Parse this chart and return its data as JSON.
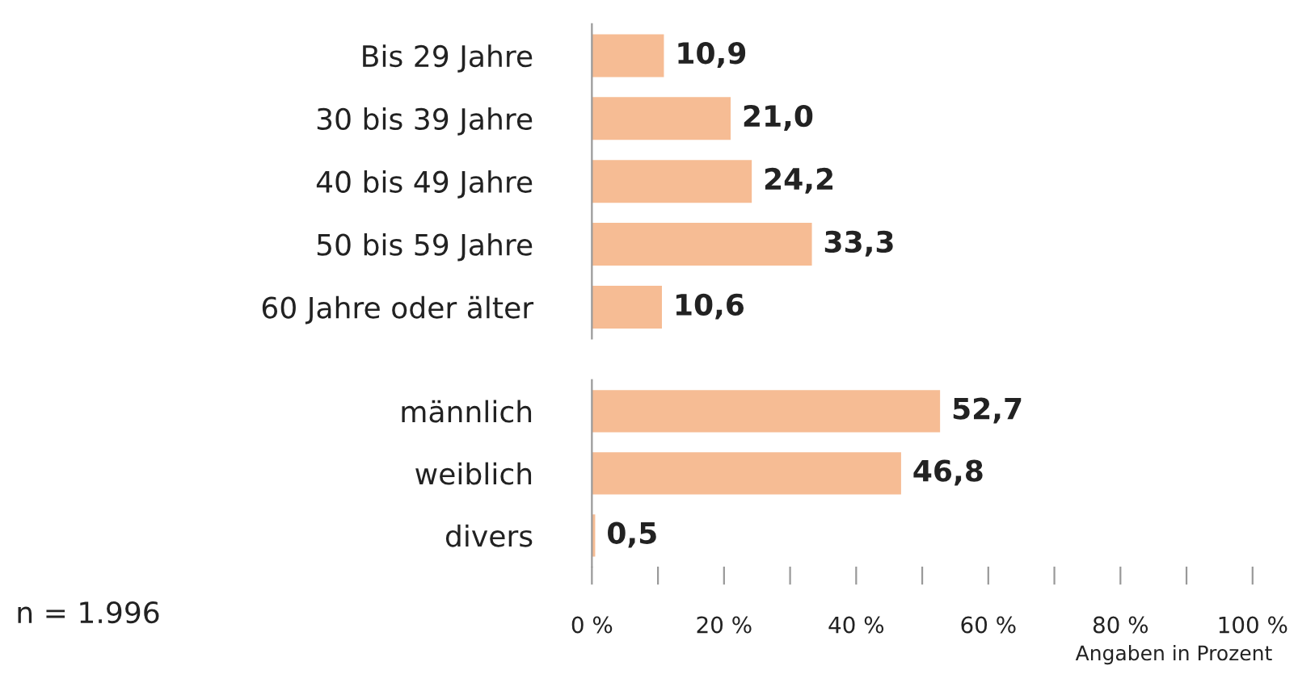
{
  "chart_data": [
    {
      "type": "bar",
      "orientation": "horizontal",
      "categories": [
        "Bis 29 Jahre",
        "30 bis 39 Jahre",
        "40 bis 49 Jahre",
        "50 bis 59 Jahre",
        "60 Jahre oder älter"
      ],
      "values": [
        10.9,
        21.0,
        24.2,
        33.3,
        10.6
      ],
      "value_labels": [
        "10,9",
        "21,0",
        "24,2",
        "33,3",
        "10,6"
      ],
      "color": "#f6bc94",
      "xlim": [
        0,
        100
      ],
      "tick_labels": "y"
    },
    {
      "type": "bar",
      "orientation": "horizontal",
      "categories": [
        "männlich",
        "weiblich",
        "divers"
      ],
      "values": [
        52.7,
        46.8,
        0.5
      ],
      "value_labels": [
        "52,7",
        "46,8",
        "0,5"
      ],
      "color": "#f6bc94",
      "xlim": [
        0,
        100
      ],
      "xticks": [
        {
          "value": 0,
          "label": "0 %"
        },
        {
          "value": 10,
          "label": null
        },
        {
          "value": 20,
          "label": "20 %"
        },
        {
          "value": 30,
          "label": null
        },
        {
          "value": 40,
          "label": "40 %"
        },
        {
          "value": 50,
          "label": null
        },
        {
          "value": 60,
          "label": "60 %"
        },
        {
          "value": 70,
          "label": null
        },
        {
          "value": 80,
          "label": "80 %"
        },
        {
          "value": 90,
          "label": null
        },
        {
          "value": 100,
          "label": "100 %"
        }
      ],
      "xlabel": "Angaben in Prozent",
      "annotations": [
        "n = 1.996"
      ]
    }
  ]
}
